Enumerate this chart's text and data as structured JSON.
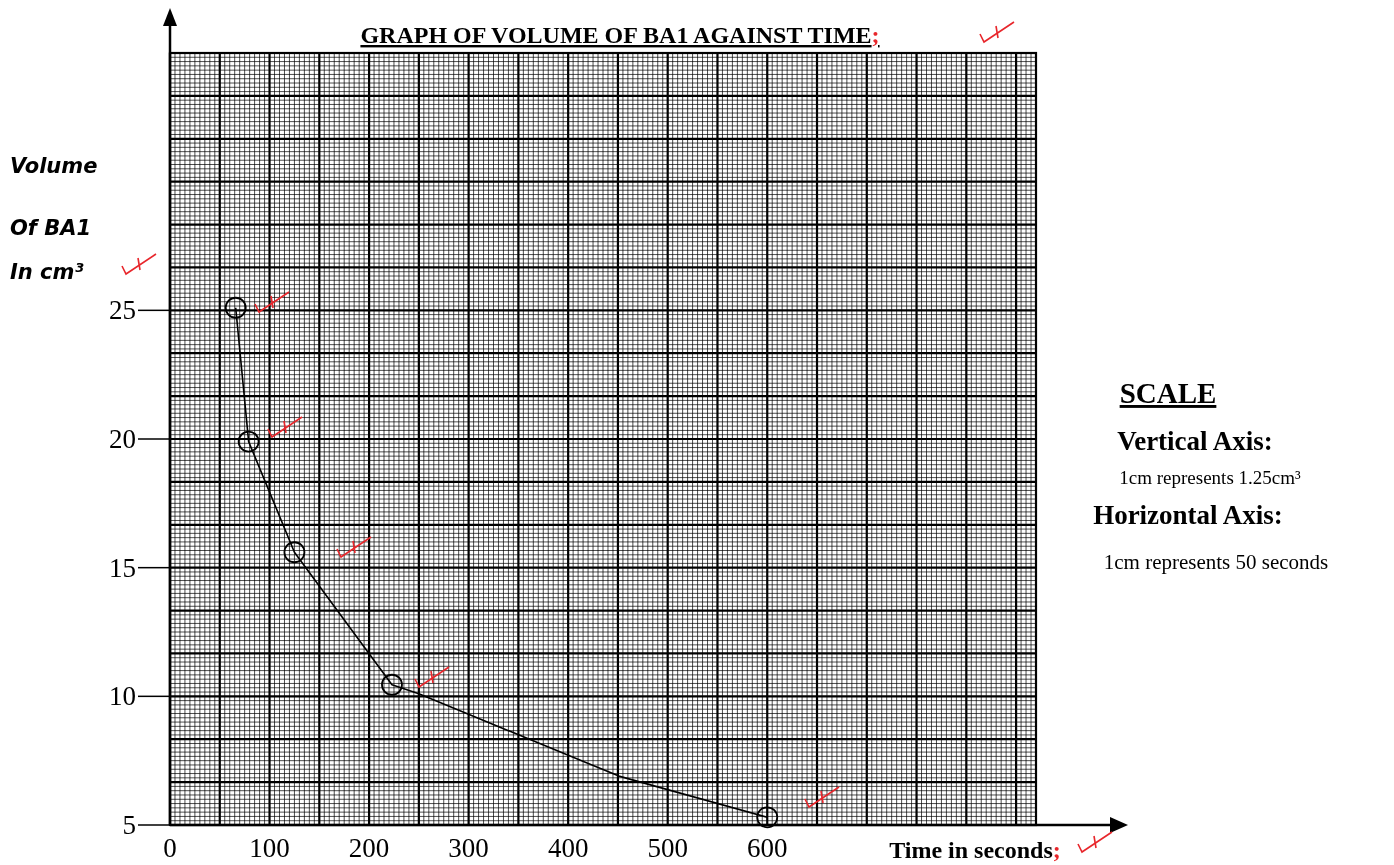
{
  "chart_data": {
    "type": "line",
    "title": "GRAPH OF VOLUME OF BA1 AGAINST TIME;",
    "xlabel": "Time in seconds;",
    "ylabel": "Volume Of BA1 In cm³",
    "annotations": [
      "SCALE",
      "Vertical Axis:",
      "1cm represents 1.25cm³",
      "Horizontal Axis:",
      "1cm represents 50 seconds"
    ],
    "series": [
      {
        "color": "#000000",
        "marker": "none",
        "x": [
          66,
          79,
          125,
          223,
          250,
          451,
          600
        ],
        "values": [
          25.1,
          19.9,
          15.6,
          10.45,
          10.1,
          6.9,
          5.3
        ]
      },
      {
        "type": "scatter",
        "color": "#000000",
        "marker": "circle",
        "x": [
          66,
          79,
          125,
          223,
          600
        ],
        "values": [
          25.1,
          19.9,
          15.6,
          10.45,
          5.3
        ]
      }
    ],
    "xlim": [
      0,
      870
    ],
    "ylim": [
      5,
      35
    ],
    "xticks": [
      0,
      100,
      200,
      300,
      400,
      500,
      600
    ],
    "yticks": [
      5,
      10,
      15,
      20,
      25
    ],
    "grid": true
  }
}
